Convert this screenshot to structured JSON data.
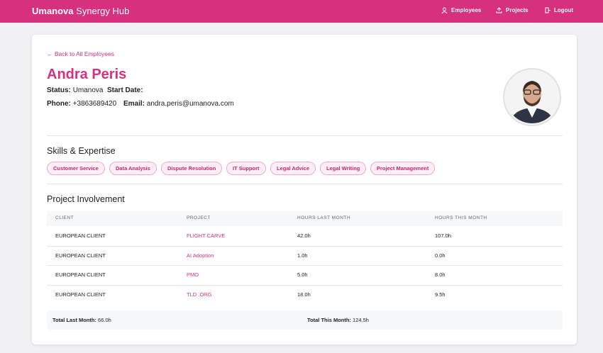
{
  "header": {
    "brand_bold": "Umanova",
    "brand_rest": "Synergy Hub",
    "nav": [
      "Employees",
      "Projects",
      "Logout"
    ]
  },
  "profile": {
    "back_link": "Back to All Employees",
    "name": "Andra Peris",
    "status_label": "Status:",
    "status": "Umanova",
    "start_date_label": "Start Date:",
    "phone_label": "Phone:",
    "phone": "+3863689420",
    "email_label": "Email:",
    "email": "andra.peris@umanova.com"
  },
  "skills": {
    "title": "Skills & Expertise",
    "items": [
      "Customer Service",
      "Data Analysis",
      "Dispute Resolution",
      "IT Support",
      "Legal Advice",
      "Legal Writing",
      "Project Management"
    ]
  },
  "projects": {
    "title": "Project Involvement",
    "table": {
      "headers": [
        "CLIENT",
        "PROJECT",
        "HOURS LAST MONTH",
        "HOURS THIS MONTH"
      ],
      "rows": [
        [
          "EUROPEAN CLIENT",
          "FLIGHT CARVE",
          "42.0h",
          "107.0h"
        ],
        [
          "EUROPEAN CLIENT",
          "AI Adoption",
          "1.0h",
          "0.0h"
        ],
        [
          "EUROPEAN CLIENT",
          "PMO",
          "5.0h",
          "8.0h"
        ],
        [
          "EUROPEAN CLIENT",
          "TLD .ORG",
          "18.0h",
          "9.5h"
        ]
      ]
    },
    "totals": {
      "last_label": "Total Last Month:",
      "last": "66.0h",
      "this_label": "Total This Month:",
      "this": "124.5h"
    }
  }
}
